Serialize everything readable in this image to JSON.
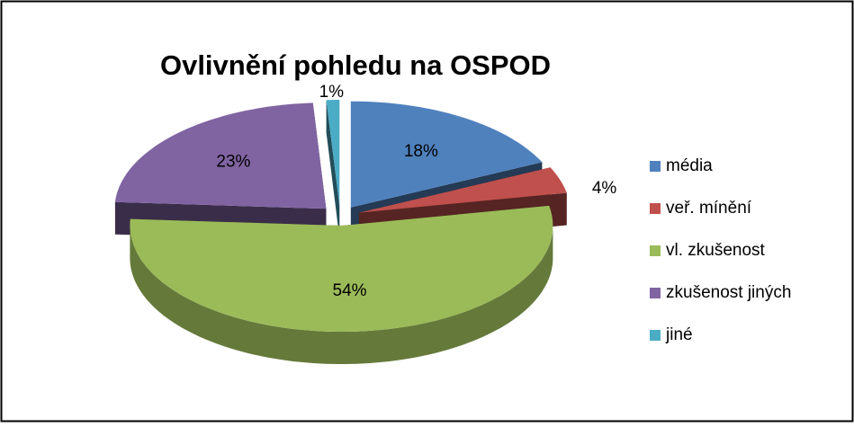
{
  "chart_data": {
    "type": "pie",
    "title": "Ovlivnění pohledu na OSPOD",
    "categories": [
      "média",
      "veř. mínění",
      "vl. zkušenost",
      "zkušenost jiných",
      "jiné"
    ],
    "values": [
      18,
      4,
      54,
      23,
      1
    ],
    "value_labels": [
      "18%",
      "4%",
      "54%",
      "23%",
      "1%"
    ],
    "colors": [
      "#4f81bd",
      "#c0504d",
      "#9bbb59",
      "#8064a2",
      "#4bacc6"
    ],
    "legend": "right"
  }
}
